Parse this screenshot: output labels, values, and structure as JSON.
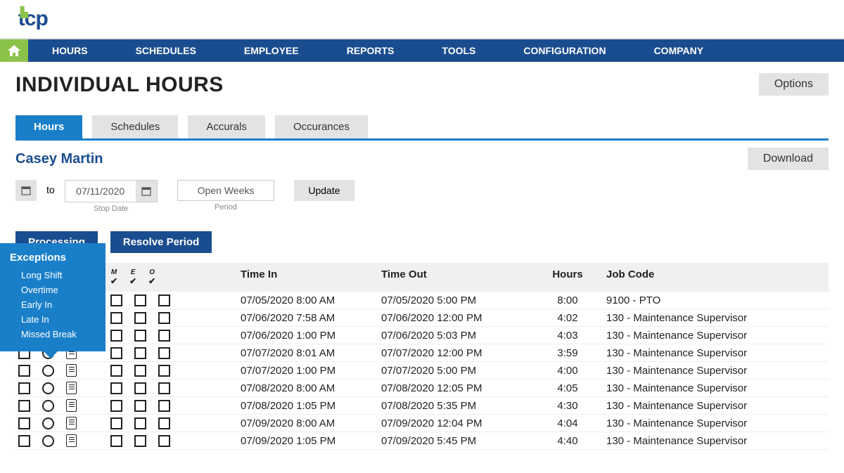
{
  "logo_text": "tcp",
  "nav": [
    "HOURS",
    "SCHEDULES",
    "EMPLOYEE",
    "REPORTS",
    "TOOLS",
    "CONFIGURATION",
    "COMPANY"
  ],
  "page_title": "INDIVIDUAL HOURS",
  "options_btn": "Options",
  "tabs": [
    {
      "label": "Hours",
      "active": true
    },
    {
      "label": "Schedules",
      "active": false
    },
    {
      "label": "Accurals",
      "active": false
    },
    {
      "label": "Occurances",
      "active": false
    }
  ],
  "employee_name": "Casey Martin",
  "download_btn": "Download",
  "date_to_text": "to",
  "stop_date": {
    "value": "07/11/2020",
    "label": "Stop Date"
  },
  "period": {
    "label": "Open Weeks",
    "caption": "Period"
  },
  "update_btn": "Update",
  "action_buttons": [
    "Processing",
    "Resolve Period"
  ],
  "popup": {
    "title": "Exceptions",
    "items": [
      "Long Shift",
      "Overtime",
      "Early In",
      "Late In",
      "Missed Break"
    ]
  },
  "columns": {
    "time_in": "Time In",
    "time_out": "Time Out",
    "hours": "Hours",
    "job_code": "Job Code"
  },
  "col_icons": [
    "M",
    "E",
    "O"
  ],
  "rows": [
    {
      "filled": true,
      "time_in": "07/05/2020 8:00 AM",
      "time_out": "07/05/2020  5:00 PM",
      "hours": "8:00",
      "job": "9100 - PTO"
    },
    {
      "filled": true,
      "time_in": "07/06/2020 7:58 AM",
      "time_out": "07/06/2020 12:00 PM",
      "hours": "4:02",
      "job": "130 - Maintenance Supervisor"
    },
    {
      "filled": false,
      "time_in": "07/06/2020 1:00 PM",
      "time_out": "07/06/2020  5:03 PM",
      "hours": "4:03",
      "job": "130 - Maintenance Supervisor"
    },
    {
      "filled": false,
      "time_in": "07/07/2020 8:01 AM",
      "time_out": "07/07/2020 12:00 PM",
      "hours": "3:59",
      "job": "130 - Maintenance Supervisor"
    },
    {
      "filled": false,
      "time_in": "07/07/2020 1:00 PM",
      "time_out": "07/07/2020  5:00 PM",
      "hours": "4:00",
      "job": "130 - Maintenance Supervisor"
    },
    {
      "filled": false,
      "time_in": "07/08/2020 8:00 AM",
      "time_out": "07/08/2020 12:05 PM",
      "hours": "4:05",
      "job": "130 - Maintenance Supervisor"
    },
    {
      "filled": false,
      "time_in": "07/08/2020 1:05 PM",
      "time_out": "07/08/2020  5:35 PM",
      "hours": "4:30",
      "job": "130 - Maintenance Supervisor"
    },
    {
      "filled": false,
      "time_in": "07/09/2020 8:00 AM",
      "time_out": "07/09/2020 12:04 PM",
      "hours": "4:04",
      "job": "130 - Maintenance Supervisor"
    },
    {
      "filled": false,
      "time_in": "07/09/2020 1:05 PM",
      "time_out": "07/09/2020  5:45 PM",
      "hours": "4:40",
      "job": "130 - Maintenance Supervisor"
    }
  ]
}
